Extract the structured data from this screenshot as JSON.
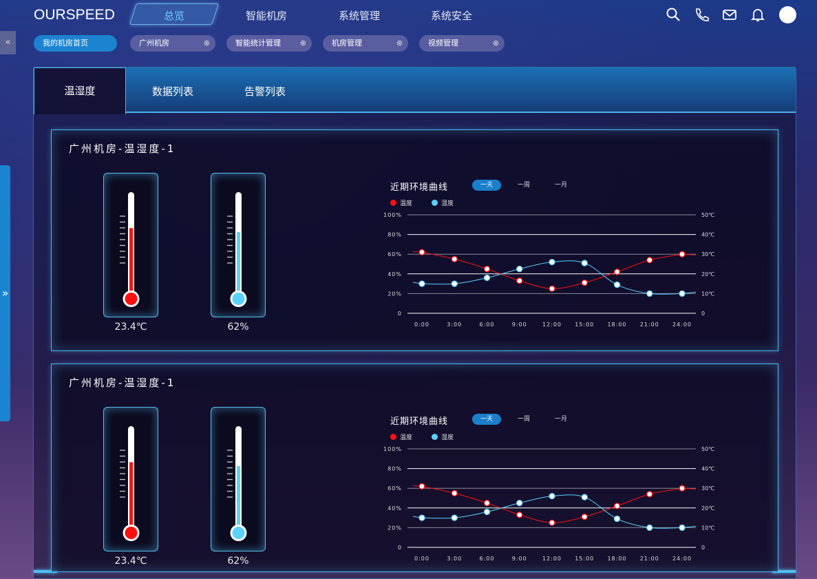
{
  "header": {
    "logo": "OURSPEED",
    "nav": [
      {
        "label": "总览",
        "active": true
      },
      {
        "label": "智能机房"
      },
      {
        "label": "系统管理"
      },
      {
        "label": "系统安全"
      }
    ],
    "icons": [
      "search-icon",
      "phone-icon",
      "mail-icon",
      "bell-icon",
      "avatar"
    ]
  },
  "tags": [
    {
      "label": "我的机房首页",
      "active": true
    },
    {
      "label": "广州机房",
      "close": "⊗"
    },
    {
      "label": "智能统计管理",
      "close": "⊗"
    },
    {
      "label": "机房管理",
      "close": "⊗"
    },
    {
      "label": "视频管理",
      "close": "⊗"
    }
  ],
  "collapse_icon": "«",
  "side_expand_icon": "»",
  "tabs": [
    {
      "label": "温湿度",
      "active": true
    },
    {
      "label": "数据列表"
    },
    {
      "label": "告警列表"
    }
  ],
  "panels": [
    {
      "title": "广州机房-温湿度-1",
      "temperature": "23.4℃",
      "temperature_fill": 0.66,
      "humidity": "62%",
      "humidity_fill": 0.62
    },
    {
      "title": "广州机房-温湿度-1",
      "temperature": "23.4℃",
      "temperature_fill": 0.66,
      "humidity": "62%",
      "humidity_fill": 0.62
    }
  ],
  "chart_common": {
    "title": "近期环境曲线",
    "ranges": [
      {
        "label": "一天",
        "active": true
      },
      {
        "label": "一周"
      },
      {
        "label": "一月"
      }
    ]
  },
  "colors": {
    "temperature": "#ff1010",
    "humidity": "#5ad2ff",
    "accent": "#1c83d0"
  },
  "chart_data": [
    {
      "type": "line",
      "title": "近期环境曲线",
      "x": [
        "0:00",
        "3:00",
        "6:00",
        "9:00",
        "12:00",
        "15:00",
        "18:00",
        "21:00",
        "24:00"
      ],
      "y_left_ticks": [
        "0",
        "20%",
        "40%",
        "60%",
        "80%",
        "100%"
      ],
      "y_right_ticks": [
        "0",
        "10℃",
        "20℃",
        "30℃",
        "40℃",
        "50℃"
      ],
      "ylim": [
        0,
        100
      ],
      "legend": "top-left",
      "series": [
        {
          "name": "温度",
          "values": [
            62,
            55,
            45,
            33,
            25,
            31,
            42,
            54,
            60
          ]
        },
        {
          "name": "湿度",
          "values": [
            30,
            30,
            36,
            45,
            52,
            51,
            29,
            20,
            20
          ]
        }
      ]
    },
    {
      "type": "line",
      "title": "近期环境曲线",
      "x": [
        "0:00",
        "3:00",
        "6:00",
        "9:00",
        "12:00",
        "15:00",
        "18:00",
        "21:00",
        "24:00"
      ],
      "y_left_ticks": [
        "0",
        "20%",
        "40%",
        "60%",
        "80%",
        "100%"
      ],
      "y_right_ticks": [
        "0",
        "10℃",
        "20℃",
        "30℃",
        "40℃",
        "50℃"
      ],
      "ylim": [
        0,
        100
      ],
      "legend": "top-left",
      "series": [
        {
          "name": "温度",
          "values": [
            62,
            55,
            45,
            33,
            25,
            31,
            42,
            54,
            60
          ]
        },
        {
          "name": "湿度",
          "values": [
            30,
            30,
            36,
            45,
            52,
            51,
            29,
            20,
            20
          ]
        }
      ]
    }
  ]
}
